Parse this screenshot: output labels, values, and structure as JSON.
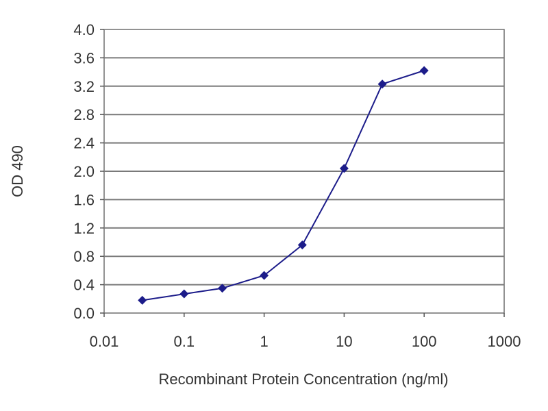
{
  "chart_data": {
    "type": "line",
    "title": "",
    "xlabel": "Recombinant Protein Concentration (ng/ml)",
    "ylabel": "OD 490",
    "x_scale": "log",
    "xlim": [
      0.01,
      1000
    ],
    "ylim": [
      0.0,
      4.0
    ],
    "x_ticks": [
      "0.01",
      "0.1",
      "1",
      "10",
      "100",
      "1000"
    ],
    "y_ticks": [
      "0.0",
      "0.4",
      "0.8",
      "1.2",
      "1.6",
      "2.0",
      "2.4",
      "2.8",
      "3.2",
      "3.6",
      "4.0"
    ],
    "grid": "horizontal",
    "colors": {
      "series": "#1c1c8a",
      "plot_background": "#ffffff",
      "gridline": "#7a7a7a"
    },
    "series": [
      {
        "x": [
          0.03,
          0.1,
          0.3,
          1,
          3,
          10,
          30,
          100
        ],
        "y": [
          0.18,
          0.27,
          0.35,
          0.53,
          0.96,
          2.04,
          3.23,
          3.42
        ]
      }
    ]
  }
}
